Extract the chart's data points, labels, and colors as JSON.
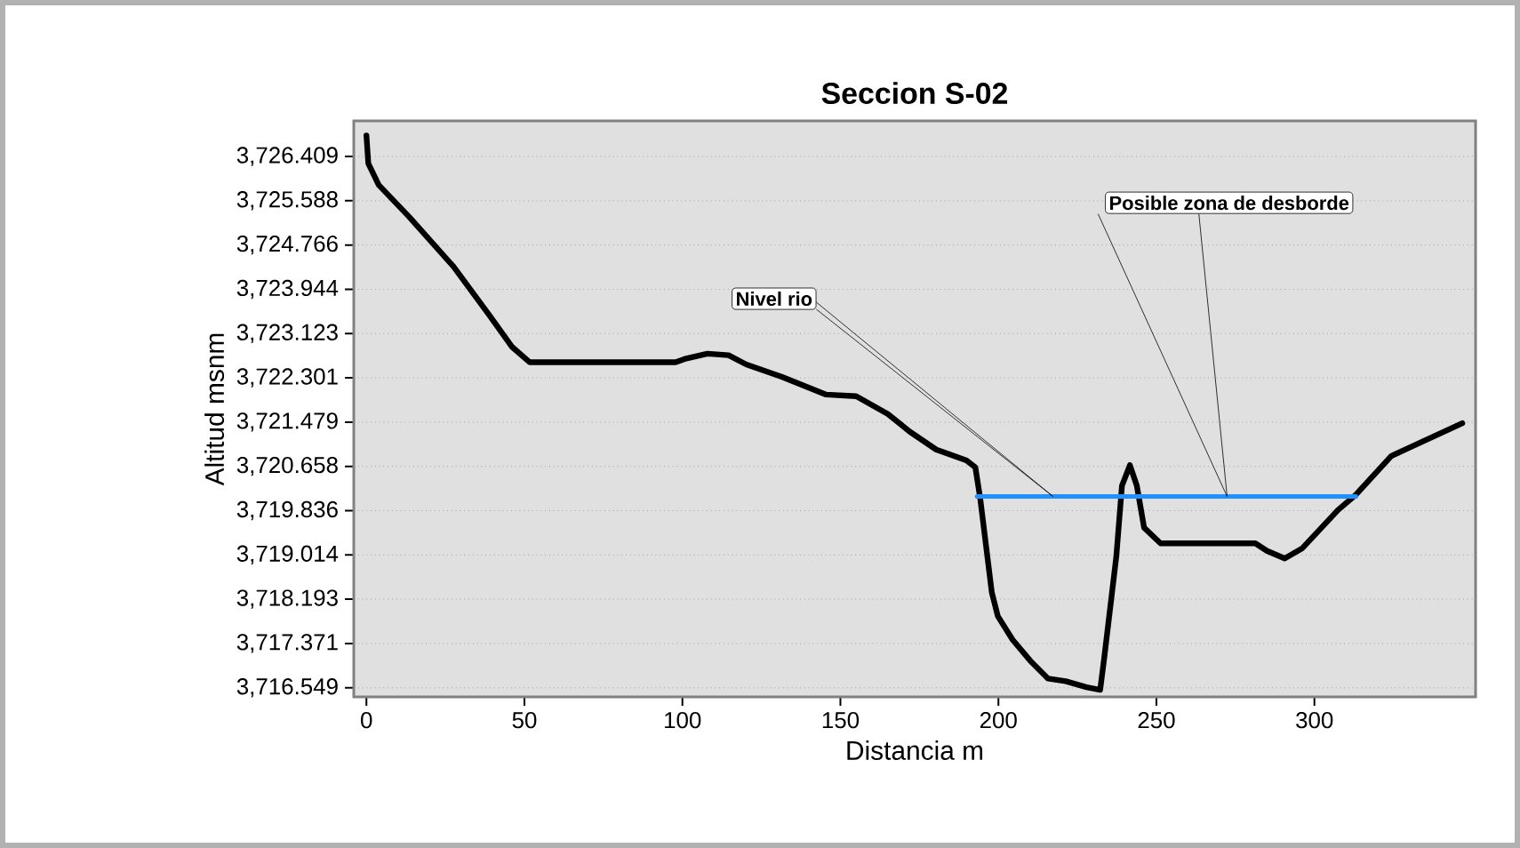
{
  "chart_data": {
    "type": "line",
    "title": "Seccion S-02",
    "xlabel": "Distancia m",
    "ylabel": "Altitud msnm",
    "xlim": [
      -4,
      351
    ],
    "ylim": [
      3716.38,
      3727.07
    ],
    "xticks": [
      0,
      50,
      100,
      150,
      200,
      250,
      300
    ],
    "yticks": [
      {
        "value": 3716.549,
        "label": "3,716.549"
      },
      {
        "value": 3717.371,
        "label": "3,717.371"
      },
      {
        "value": 3718.193,
        "label": "3,718.193"
      },
      {
        "value": 3719.014,
        "label": "3,719.014"
      },
      {
        "value": 3719.836,
        "label": "3,719.836"
      },
      {
        "value": 3720.658,
        "label": "3,720.658"
      },
      {
        "value": 3721.479,
        "label": "3,721.479"
      },
      {
        "value": 3722.301,
        "label": "3,722.301"
      },
      {
        "value": 3723.123,
        "label": "3,723.123"
      },
      {
        "value": 3723.944,
        "label": "3,723.944"
      },
      {
        "value": 3724.766,
        "label": "3,724.766"
      },
      {
        "value": 3725.588,
        "label": "3,725.588"
      },
      {
        "value": 3726.409,
        "label": "3,726.409"
      }
    ],
    "grid": "y",
    "marker": "none",
    "line_style": "solid",
    "series": [
      {
        "color": "#000000",
        "x": [
          0,
          0.6,
          3.9,
          13.5,
          27.5,
          38.8,
          46,
          51.7,
          97.8,
          100.6,
          107.9,
          114.6,
          120.2,
          131.5,
          145.5,
          155,
          165,
          172,
          180.3,
          189.9,
          192.7,
          194.2,
          197.9,
          199.8,
          204.5,
          210.1,
          215.7,
          221.3,
          227.9,
          232.2,
          233.5,
          237.3,
          239.1,
          241.6,
          243.8,
          246.1,
          251.3,
          281.3,
          285,
          290.6,
          296.2,
          307.5,
          313.1,
          324.3,
          346.8
        ],
        "values": [
          3726.8,
          3726.28,
          3725.88,
          3725.29,
          3724.37,
          3723.47,
          3722.88,
          3722.59,
          3722.59,
          3722.65,
          3722.75,
          3722.72,
          3722.55,
          3722.32,
          3721.99,
          3721.96,
          3721.63,
          3721.3,
          3720.97,
          3720.77,
          3720.64,
          3720.08,
          3718.32,
          3717.88,
          3717.44,
          3717.05,
          3716.72,
          3716.67,
          3716.56,
          3716.51,
          3717.11,
          3718.98,
          3720.3,
          3720.68,
          3720.3,
          3719.52,
          3719.23,
          3719.23,
          3719.09,
          3718.95,
          3719.14,
          3719.85,
          3720.13,
          3720.85,
          3721.46
        ]
      },
      {
        "color": "#1e90ff",
        "x": [
          193.3,
          313.1
        ],
        "values": [
          3720.1,
          3720.1
        ]
      }
    ],
    "annotations": [
      "Nivel rio",
      "Posible zona de desborde"
    ]
  }
}
